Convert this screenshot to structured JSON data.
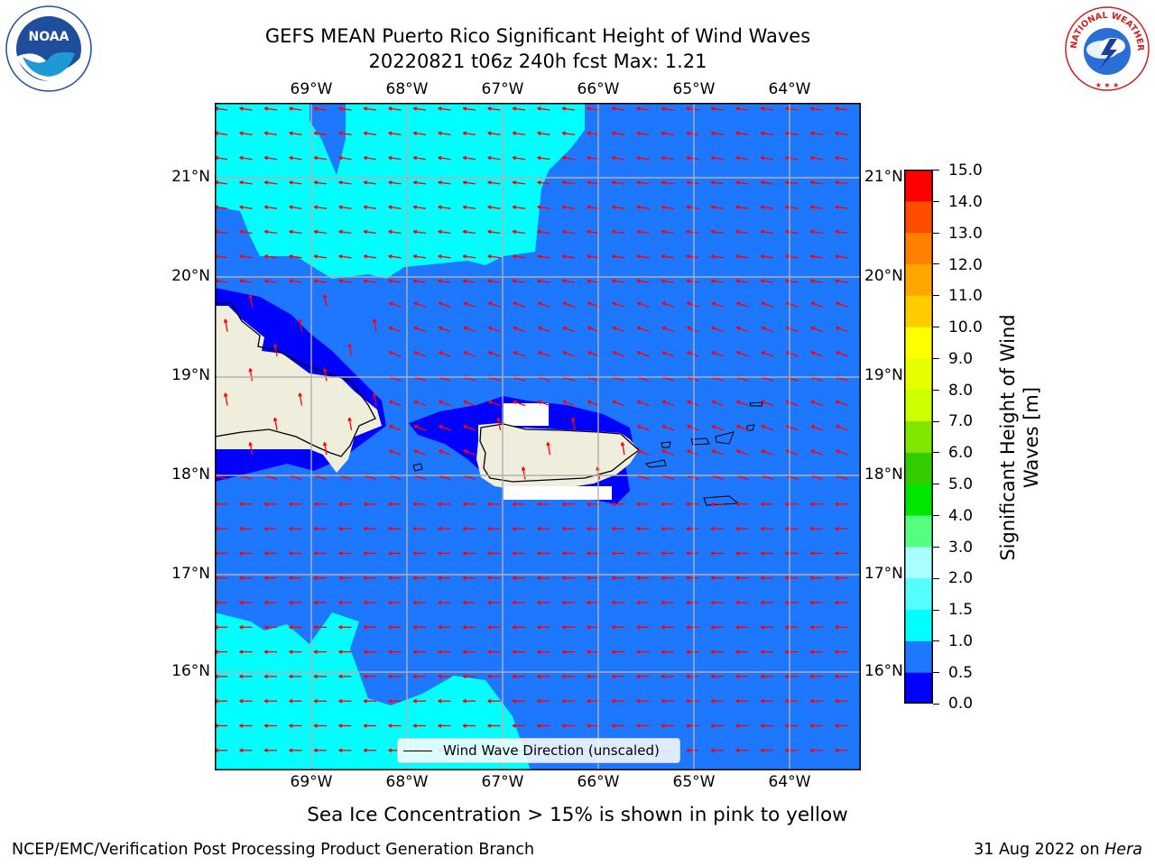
{
  "title": {
    "line1": "GEFS MEAN Puerto Rico Significant Height of Wind Waves",
    "line2": "20220821 t06z 240h fcst   Max: 1.21"
  },
  "axes": {
    "lon_labels": [
      "69°W",
      "68°W",
      "67°W",
      "66°W",
      "65°W",
      "64°W"
    ],
    "lat_labels": [
      "21°N",
      "20°N",
      "19°N",
      "18°N",
      "17°N",
      "16°N"
    ]
  },
  "colorbar": {
    "title_line1": "Significant Height of Wind",
    "title_line2": "Waves [m]",
    "ticks": [
      "15.0",
      "14.0",
      "13.0",
      "12.0",
      "11.0",
      "10.0",
      "9.0",
      "8.0",
      "7.0",
      "6.0",
      "5.0",
      "4.0",
      "3.0",
      "2.0",
      "1.5",
      "1.0",
      "0.5",
      "0.0"
    ],
    "colors": [
      "#0000ff",
      "#1e78ff",
      "#00ffff",
      "#55ffff",
      "#aaffff",
      "#55ff80",
      "#00e600",
      "#33cc00",
      "#80e600",
      "#ccff00",
      "#e6ff00",
      "#ffff00",
      "#ffcc00",
      "#ffa500",
      "#ff8000",
      "#ff4d00",
      "#ff0000"
    ]
  },
  "legend": {
    "label": "Wind Wave Direction (unscaled)"
  },
  "subnote": "Sea Ice Concentration > 15% is shown in pink to yellow",
  "footer": {
    "left": "NCEP/EMC/Verification Post Processing Product Generation Branch",
    "right_prefix": "31 Aug 2022 on ",
    "right_italic": "Hera"
  },
  "logos": {
    "noaa_text": "NOAA",
    "nws_text": "NATIONAL WEATHER SERVICE"
  },
  "map_colors": {
    "land": "#efeddc",
    "ocean_mid": "#1e78ff",
    "ocean_low": "#0000ff",
    "ocean_high": "#00ffff",
    "arrow": "#ff0000"
  }
}
